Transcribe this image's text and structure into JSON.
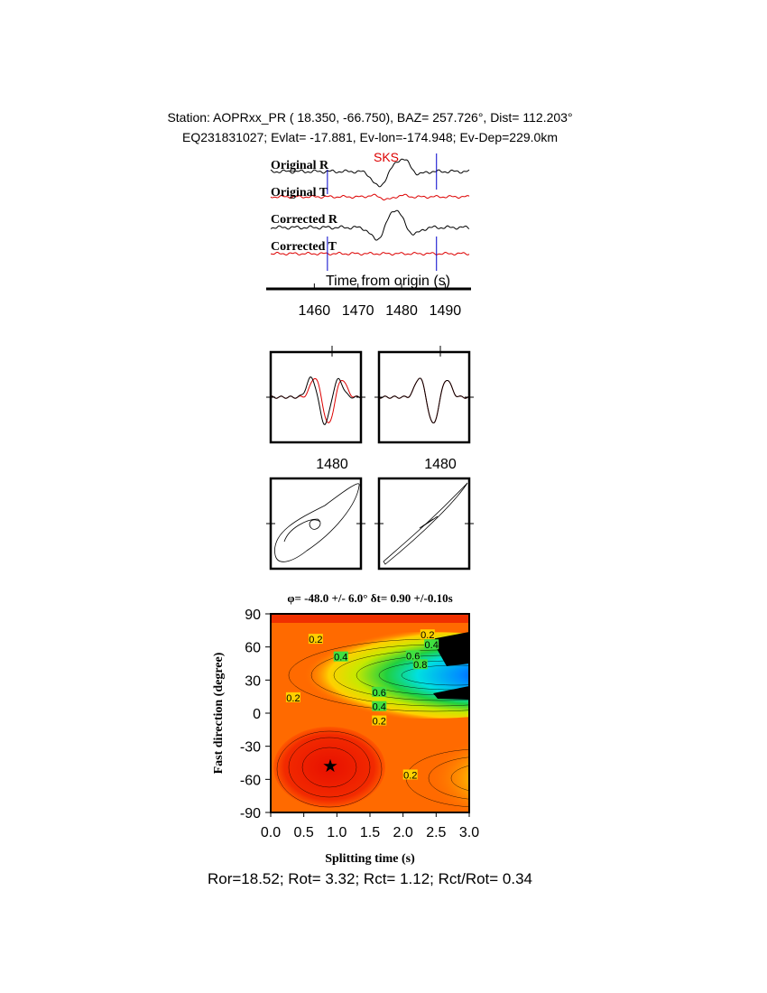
{
  "header": {
    "station": "Station: AOPRxx_PR (  18.350,  -66.750), BAZ=  257.726°, Dist=  112.203°",
    "event": "EQ231831027; Evlat= -17.881, Ev-lon=-174.948; Ev-Dep=229.0km"
  },
  "chart_data": [
    {
      "type": "waveform",
      "labels": [
        "Original R",
        "Original T",
        "Corrected R",
        "Corrected T"
      ],
      "annotation": "SKS",
      "xlabel": "Time from origin (s)",
      "xlim": [
        1450,
        1495.5
      ],
      "xticks": [
        1460,
        1470,
        1480,
        1490
      ],
      "window": [
        1463,
        1488
      ]
    },
    {
      "type": "zoom",
      "xlim": [
        1463,
        1488
      ],
      "xticks": [
        1480
      ]
    },
    {
      "type": "zoom",
      "xlim": [
        1463,
        1488
      ],
      "xticks": [
        1480
      ]
    },
    {
      "type": "contour",
      "title": "φ= -48.0 +/- 6.0° δt= 0.90 +/-0.10s",
      "xlabel": "Splitting time (s)",
      "ylabel": "Fast direction (degree)",
      "xlim": [
        0,
        3
      ],
      "ylim": [
        -90,
        90
      ],
      "xticks": [
        {
          "value": 0,
          "label": "0.0"
        },
        0.5,
        {
          "value": 1,
          "label": "1.0"
        },
        1.5,
        {
          "value": 2,
          "label": "2.0"
        },
        2.5,
        {
          "value": 3,
          "label": "3.0"
        }
      ],
      "yticks": [
        -90,
        -60,
        -30,
        0,
        30,
        60,
        90
      ],
      "best_dt": 0.9,
      "best_phi": -48,
      "contour_labels": [
        {
          "level": 0.2,
          "x": 0.68,
          "y": 67
        },
        {
          "level": 0.4,
          "x": 1.06,
          "y": 51
        },
        {
          "level": 0.2,
          "x": 0.34,
          "y": 14
        },
        {
          "level": 0.2,
          "x": 2.37,
          "y": 71
        },
        {
          "level": 0.4,
          "x": 2.43,
          "y": 62
        },
        {
          "level": 0.6,
          "x": 2.15,
          "y": 52
        },
        {
          "level": 0.8,
          "x": 2.26,
          "y": 44
        },
        {
          "level": 0.6,
          "x": 1.64,
          "y": 19
        },
        {
          "level": 0.4,
          "x": 1.64,
          "y": 6
        },
        {
          "level": 0.2,
          "x": 1.64,
          "y": -7
        },
        {
          "level": 0.2,
          "x": 2.11,
          "y": -56
        }
      ]
    }
  ],
  "footer": "Ror=18.52; Rot= 3.32; Rct= 1.12; Rct/Rot= 0.34"
}
